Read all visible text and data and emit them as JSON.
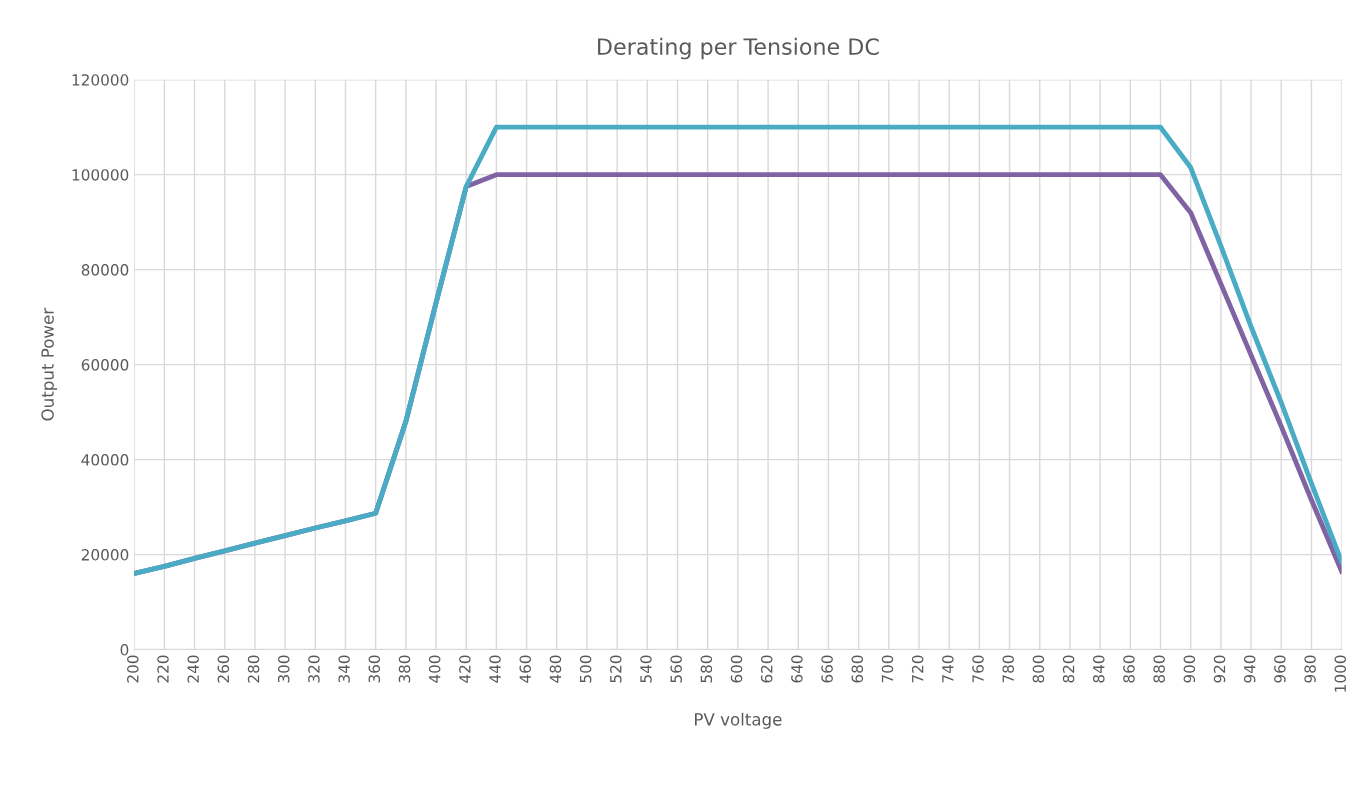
{
  "chart_data": {
    "type": "line",
    "title": "Derating per Tensione DC",
    "xlabel": "PV voltage",
    "ylabel": "Output Power",
    "categories": [
      "200",
      "220",
      "240",
      "260",
      "280",
      "300",
      "320",
      "340",
      "360",
      "380",
      "400",
      "420",
      "440",
      "460",
      "480",
      "500",
      "520",
      "540",
      "560",
      "580",
      "600",
      "620",
      "640",
      "660",
      "680",
      "700",
      "720",
      "740",
      "760",
      "780",
      "800",
      "820",
      "840",
      "860",
      "880",
      "900",
      "920",
      "940",
      "960",
      "980",
      "1000"
    ],
    "series": [
      {
        "color": "#7f63a3",
        "values": [
          16000,
          17500,
          19200,
          20800,
          22400,
          24000,
          25600,
          27100,
          28700,
          48000,
          73000,
          97500,
          100000,
          100000,
          100000,
          100000,
          100000,
          100000,
          100000,
          100000,
          100000,
          100000,
          100000,
          100000,
          100000,
          100000,
          100000,
          100000,
          100000,
          100000,
          100000,
          100000,
          100000,
          100000,
          100000,
          92000,
          77000,
          62000,
          47000,
          31500,
          16500
        ]
      },
      {
        "color": "#4aabc5",
        "values": [
          16000,
          17500,
          19200,
          20800,
          22400,
          24000,
          25600,
          27100,
          28700,
          48000,
          73000,
          97500,
          110000,
          110000,
          110000,
          110000,
          110000,
          110000,
          110000,
          110000,
          110000,
          110000,
          110000,
          110000,
          110000,
          110000,
          110000,
          110000,
          110000,
          110000,
          110000,
          110000,
          110000,
          110000,
          110000,
          101500,
          85000,
          68000,
          52000,
          35000,
          18500
        ]
      }
    ],
    "ylim": [
      0,
      120000
    ],
    "yticks": [
      0,
      20000,
      40000,
      60000,
      80000,
      100000,
      120000
    ],
    "grid": true,
    "marker": "none",
    "line_style": "solid"
  }
}
